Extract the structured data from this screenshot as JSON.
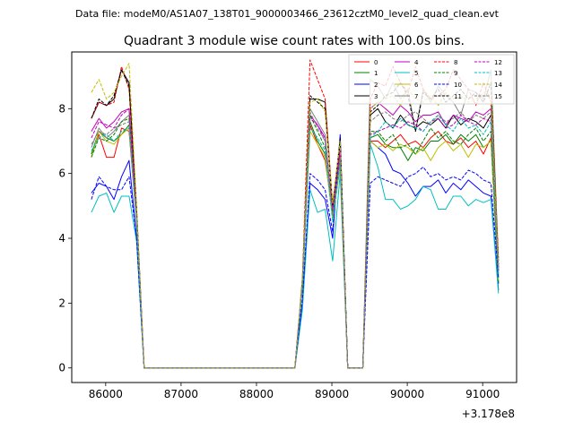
{
  "header": {
    "data_file": "Data file: modeM0/AS1A07_138T01_9000003466_23612cztM0_level2_quad_clean.evt"
  },
  "chart_data": {
    "type": "line",
    "title": "Quadrant 3 module wise count rates with 100.0s bins.",
    "xlabel": "",
    "ylabel": "",
    "x_offset_label": "+3.178e8",
    "xlim": [
      85550,
      91450
    ],
    "ylim": [
      -0.45,
      9.75
    ],
    "xticks": [
      86000,
      87000,
      88000,
      89000,
      90000,
      91000
    ],
    "xtick_labels": [
      "86000",
      "87000",
      "88000",
      "89000",
      "90000",
      "91000"
    ],
    "yticks": [
      0,
      2,
      4,
      6,
      8
    ],
    "ytick_labels": [
      "0",
      "2",
      "4",
      "6",
      "8"
    ],
    "grid": false,
    "legend_position": "top-right",
    "x": [
      85810,
      85910,
      86010,
      86110,
      86210,
      86310,
      86410,
      86510,
      86610,
      86710,
      86810,
      86910,
      87010,
      87110,
      87210,
      87310,
      87410,
      87510,
      87610,
      87710,
      87810,
      87910,
      88010,
      88110,
      88210,
      88310,
      88410,
      88510,
      88610,
      88710,
      88810,
      88910,
      89010,
      89110,
      89210,
      89310,
      89410,
      89510,
      89610,
      89710,
      89810,
      89910,
      90010,
      90110,
      90210,
      90310,
      90410,
      90510,
      90610,
      90710,
      90810,
      90910,
      91010,
      91110,
      91210
    ],
    "series": [
      {
        "name": "0",
        "color": "#ff0000",
        "dash": false,
        "values": [
          6.6,
          7.2,
          6.5,
          6.5,
          7.4,
          7.3,
          4.5,
          0,
          0,
          0,
          0,
          0,
          0,
          0,
          0,
          0,
          0,
          0,
          0,
          0,
          0,
          0,
          0,
          0,
          0,
          0,
          0,
          0,
          2.5,
          7.5,
          6.9,
          6.4,
          4.8,
          6.4,
          0,
          0,
          0,
          7.0,
          7.0,
          6.8,
          7.0,
          7.2,
          6.9,
          7.0,
          6.8,
          7.1,
          7.3,
          7.0,
          6.9,
          7.1,
          6.8,
          7.0,
          6.6,
          7.1,
          2.6
        ]
      },
      {
        "name": "1",
        "color": "#008000",
        "dash": false,
        "values": [
          6.6,
          7.3,
          7.1,
          7.0,
          7.2,
          7.5,
          4.6,
          0,
          0,
          0,
          0,
          0,
          0,
          0,
          0,
          0,
          0,
          0,
          0,
          0,
          0,
          0,
          0,
          0,
          0,
          0,
          0,
          0,
          2.5,
          7.6,
          7.0,
          6.6,
          4.6,
          6.8,
          0,
          0,
          0,
          7.1,
          7.2,
          6.9,
          6.8,
          6.8,
          6.4,
          6.8,
          6.7,
          7.0,
          7.0,
          7.2,
          6.9,
          7.2,
          7.0,
          7.2,
          6.8,
          7.0,
          2.6
        ]
      },
      {
        "name": "2",
        "color": "#0000ff",
        "dash": false,
        "values": [
          5.4,
          5.7,
          5.6,
          5.2,
          5.9,
          6.4,
          4.0,
          0,
          0,
          0,
          0,
          0,
          0,
          0,
          0,
          0,
          0,
          0,
          0,
          0,
          0,
          0,
          0,
          0,
          0,
          0,
          0,
          0,
          2.0,
          5.7,
          5.5,
          5.2,
          4.0,
          7.2,
          0,
          0,
          0,
          7.0,
          6.8,
          6.6,
          6.1,
          6.0,
          5.7,
          5.3,
          5.6,
          5.6,
          5.8,
          5.4,
          5.7,
          5.5,
          5.8,
          5.6,
          5.4,
          5.3,
          2.4
        ]
      },
      {
        "name": "3",
        "color": "#000000",
        "dash": false,
        "values": [
          7.7,
          8.2,
          8.1,
          8.3,
          9.2,
          8.8,
          4.9,
          0,
          0,
          0,
          0,
          0,
          0,
          0,
          0,
          0,
          0,
          0,
          0,
          0,
          0,
          0,
          0,
          0,
          0,
          0,
          0,
          0,
          2.7,
          8.3,
          8.3,
          8.2,
          5.0,
          7.0,
          0,
          0,
          0,
          7.8,
          8.0,
          7.6,
          7.4,
          7.8,
          7.5,
          7.4,
          7.6,
          7.5,
          7.7,
          7.4,
          7.8,
          7.5,
          7.7,
          7.6,
          7.4,
          7.8,
          3.1
        ]
      },
      {
        "name": "4",
        "color": "#bf00bf",
        "dash": false,
        "values": [
          7.3,
          7.7,
          7.4,
          7.6,
          7.9,
          8.0,
          4.7,
          0,
          0,
          0,
          0,
          0,
          0,
          0,
          0,
          0,
          0,
          0,
          0,
          0,
          0,
          0,
          0,
          0,
          0,
          0,
          0,
          0,
          2.6,
          7.8,
          7.5,
          7.1,
          4.8,
          6.6,
          0,
          0,
          0,
          8.0,
          8.2,
          8.0,
          7.8,
          8.1,
          7.9,
          7.6,
          7.8,
          7.8,
          7.9,
          7.5,
          7.8,
          7.7,
          7.6,
          7.9,
          7.8,
          8.0,
          3.0
        ]
      },
      {
        "name": "5",
        "color": "#00bfbf",
        "dash": false,
        "values": [
          4.8,
          5.3,
          5.4,
          4.8,
          5.3,
          5.3,
          3.9,
          0,
          0,
          0,
          0,
          0,
          0,
          0,
          0,
          0,
          0,
          0,
          0,
          0,
          0,
          0,
          0,
          0,
          0,
          0,
          0,
          0,
          1.8,
          5.5,
          4.8,
          4.9,
          3.3,
          6.0,
          0,
          0,
          0,
          6.9,
          6.2,
          5.2,
          5.2,
          4.9,
          5.0,
          5.2,
          5.6,
          5.5,
          4.9,
          4.9,
          5.3,
          5.3,
          5.0,
          5.2,
          5.1,
          5.2,
          2.3
        ]
      },
      {
        "name": "6",
        "color": "#bfbf00",
        "dash": false,
        "values": [
          6.5,
          7.3,
          7.0,
          6.9,
          7.2,
          7.4,
          4.5,
          0,
          0,
          0,
          0,
          0,
          0,
          0,
          0,
          0,
          0,
          0,
          0,
          0,
          0,
          0,
          0,
          0,
          0,
          0,
          0,
          0,
          2.5,
          7.3,
          6.9,
          6.5,
          4.6,
          6.2,
          0,
          0,
          0,
          7.0,
          6.8,
          6.9,
          6.7,
          6.9,
          6.8,
          6.6,
          6.8,
          6.4,
          6.8,
          7.0,
          6.7,
          6.9,
          6.5,
          6.9,
          6.8,
          7.0,
          2.7
        ]
      },
      {
        "name": "7",
        "color": "#808080",
        "dash": false,
        "values": [
          6.8,
          7.4,
          7.1,
          7.3,
          7.6,
          7.8,
          4.6,
          0,
          0,
          0,
          0,
          0,
          0,
          0,
          0,
          0,
          0,
          0,
          0,
          0,
          0,
          0,
          0,
          0,
          0,
          0,
          0,
          0,
          2.6,
          8.0,
          7.6,
          7.2,
          4.7,
          6.5,
          0,
          0,
          0,
          8.9,
          8.7,
          8.3,
          8.8,
          8.3,
          8.6,
          7.3,
          8.6,
          8.2,
          8.7,
          8.4,
          8.2,
          7.8,
          8.6,
          8.5,
          8.3,
          9.2,
          3.3
        ]
      },
      {
        "name": "8",
        "color": "#ff0000",
        "dash": true,
        "values": [
          7.7,
          8.2,
          8.1,
          8.2,
          9.3,
          8.6,
          4.9,
          0,
          0,
          0,
          0,
          0,
          0,
          0,
          0,
          0,
          0,
          0,
          0,
          0,
          0,
          0,
          0,
          0,
          0,
          0,
          0,
          0,
          2.8,
          9.5,
          8.9,
          8.3,
          5.0,
          6.8,
          0,
          0,
          0,
          8.3,
          8.8,
          8.7,
          9.3,
          8.8,
          8.5,
          9.3,
          8.6,
          8.3,
          8.4,
          8.6,
          9.2,
          8.9,
          8.6,
          8.1,
          8.8,
          8.2,
          3.4
        ]
      },
      {
        "name": "9",
        "color": "#008000",
        "dash": true,
        "values": [
          6.5,
          7.1,
          7.0,
          7.2,
          7.6,
          7.7,
          4.6,
          0,
          0,
          0,
          0,
          0,
          0,
          0,
          0,
          0,
          0,
          0,
          0,
          0,
          0,
          0,
          0,
          0,
          0,
          0,
          0,
          0,
          2.6,
          7.8,
          7.3,
          6.8,
          4.8,
          6.4,
          0,
          0,
          0,
          7.3,
          7.3,
          7.0,
          7.2,
          6.8,
          6.9,
          6.6,
          7.0,
          7.4,
          7.1,
          7.3,
          7.0,
          6.9,
          7.2,
          7.4,
          7.0,
          7.3,
          2.8
        ]
      },
      {
        "name": "10",
        "color": "#0000ff",
        "dash": true,
        "values": [
          5.2,
          5.9,
          5.6,
          5.5,
          5.5,
          5.9,
          4.0,
          0,
          0,
          0,
          0,
          0,
          0,
          0,
          0,
          0,
          0,
          0,
          0,
          0,
          0,
          0,
          0,
          0,
          0,
          0,
          0,
          0,
          2.1,
          6.0,
          5.8,
          5.5,
          4.2,
          7.0,
          0,
          0,
          0,
          5.7,
          5.9,
          5.8,
          5.7,
          5.6,
          5.9,
          6.0,
          6.2,
          5.9,
          6.0,
          5.8,
          5.9,
          5.8,
          6.1,
          6.0,
          5.8,
          5.7,
          2.8
        ]
      },
      {
        "name": "11",
        "color": "#000000",
        "dash": true,
        "values": [
          7.7,
          8.3,
          8.1,
          8.4,
          9.2,
          8.7,
          4.9,
          0,
          0,
          0,
          0,
          0,
          0,
          0,
          0,
          0,
          0,
          0,
          0,
          0,
          0,
          0,
          0,
          0,
          0,
          0,
          0,
          0,
          2.7,
          8.4,
          8.2,
          8.0,
          4.9,
          7.1,
          0,
          0,
          0,
          7.9,
          8.1,
          8.4,
          8.5,
          8.8,
          8.4,
          7.3,
          8.5,
          8.3,
          8.6,
          8.2,
          8.4,
          8.6,
          8.3,
          8.5,
          8.2,
          8.8,
          3.2
        ]
      },
      {
        "name": "12",
        "color": "#bf00bf",
        "dash": true,
        "values": [
          7.1,
          7.6,
          7.5,
          7.4,
          7.8,
          8.0,
          4.7,
          0,
          0,
          0,
          0,
          0,
          0,
          0,
          0,
          0,
          0,
          0,
          0,
          0,
          0,
          0,
          0,
          0,
          0,
          0,
          0,
          0,
          2.6,
          7.7,
          7.5,
          7.0,
          4.9,
          6.7,
          0,
          0,
          0,
          7.2,
          7.3,
          7.4,
          7.5,
          7.4,
          7.6,
          7.5,
          7.3,
          7.6,
          7.7,
          7.4,
          7.5,
          7.8,
          7.6,
          7.5,
          7.7,
          7.6,
          3.0
        ]
      },
      {
        "name": "13",
        "color": "#00bfbf",
        "dash": true,
        "values": [
          6.7,
          7.1,
          7.2,
          7.0,
          7.3,
          7.4,
          4.5,
          0,
          0,
          0,
          0,
          0,
          0,
          0,
          0,
          0,
          0,
          0,
          0,
          0,
          0,
          0,
          0,
          0,
          0,
          0,
          0,
          0,
          2.5,
          7.4,
          7.1,
          6.7,
          4.5,
          6.3,
          0,
          0,
          0,
          7.1,
          7.3,
          7.6,
          7.4,
          7.7,
          7.5,
          7.4,
          7.3,
          7.6,
          7.8,
          7.5,
          7.3,
          7.7,
          7.4,
          7.5,
          7.2,
          7.6,
          2.9
        ]
      },
      {
        "name": "14",
        "color": "#bfbf00",
        "dash": true,
        "values": [
          8.5,
          8.9,
          8.3,
          8.5,
          9.0,
          9.4,
          5.0,
          0,
          0,
          0,
          0,
          0,
          0,
          0,
          0,
          0,
          0,
          0,
          0,
          0,
          0,
          0,
          0,
          0,
          0,
          0,
          0,
          0,
          2.8,
          8.2,
          8.3,
          7.9,
          5.1,
          7.0,
          0,
          0,
          0,
          8.0,
          8.2,
          8.3,
          8.4,
          8.1,
          8.6,
          8.3,
          8.2,
          8.4,
          8.1,
          8.5,
          8.3,
          8.4,
          8.2,
          8.3,
          8.5,
          8.4,
          3.2
        ]
      },
      {
        "name": "15",
        "color": "#808080",
        "dash": true,
        "values": [
          6.9,
          7.3,
          7.2,
          7.4,
          7.5,
          7.6,
          4.6,
          0,
          0,
          0,
          0,
          0,
          0,
          0,
          0,
          0,
          0,
          0,
          0,
          0,
          0,
          0,
          0,
          0,
          0,
          0,
          0,
          0,
          2.6,
          7.9,
          7.4,
          7.0,
          4.7,
          6.4,
          0,
          0,
          0,
          7.6,
          7.8,
          7.9,
          7.7,
          7.6,
          7.8,
          7.9,
          7.7,
          7.5,
          7.8,
          7.6,
          7.7,
          7.9,
          7.6,
          7.8,
          7.7,
          7.9,
          3.0
        ]
      }
    ]
  }
}
